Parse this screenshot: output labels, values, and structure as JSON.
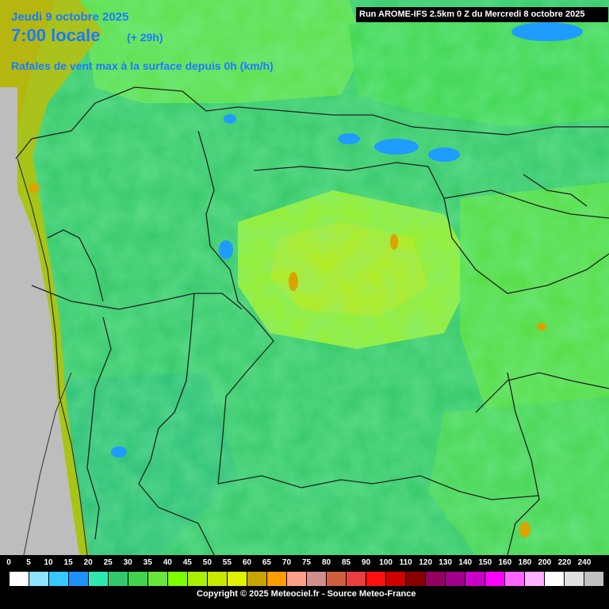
{
  "header": {
    "date": "Jeudi 9 octobre 2025",
    "time": "7:00 locale",
    "offset": "(+ 29h)",
    "description": "Rafales de vent max à la surface depuis 0h (km/h)",
    "run_info": "Run AROME-IFS 2.5km 0 Z du Mercredi 8 octobre 2025"
  },
  "legend": {
    "labels": [
      "0",
      "5",
      "10",
      "15",
      "20",
      "25",
      "30",
      "35",
      "40",
      "45",
      "50",
      "55",
      "60",
      "65",
      "70",
      "75",
      "80",
      "85",
      "90",
      "100",
      "110",
      "120",
      "130",
      "140",
      "150",
      "160",
      "180",
      "200",
      "220",
      "240"
    ],
    "colors": [
      "#ffffff",
      "#8ee3ff",
      "#36c8ff",
      "#1e90ff",
      "#2ee8b0",
      "#31c86e",
      "#3fd44c",
      "#6ae63a",
      "#7dff00",
      "#a8f000",
      "#c8e800",
      "#e0f000",
      "#c8a400",
      "#ff9d00",
      "#ff9f8a",
      "#d08f8f",
      "#cf5f3f",
      "#e84040",
      "#ff1010",
      "#d00000",
      "#8a0000",
      "#940060",
      "#a0008a",
      "#c800c8",
      "#ff00ff",
      "#ff66ff",
      "#ffb0ff",
      "#ffffff",
      "#e0e0e0",
      "#c0c0c0"
    ]
  },
  "copyright": "Copyright © 2025 Meteociel.fr - Source Meteo-France",
  "colors": {
    "ocean_gray": "#bdbdbd",
    "title_blue": "#1a7cff"
  }
}
